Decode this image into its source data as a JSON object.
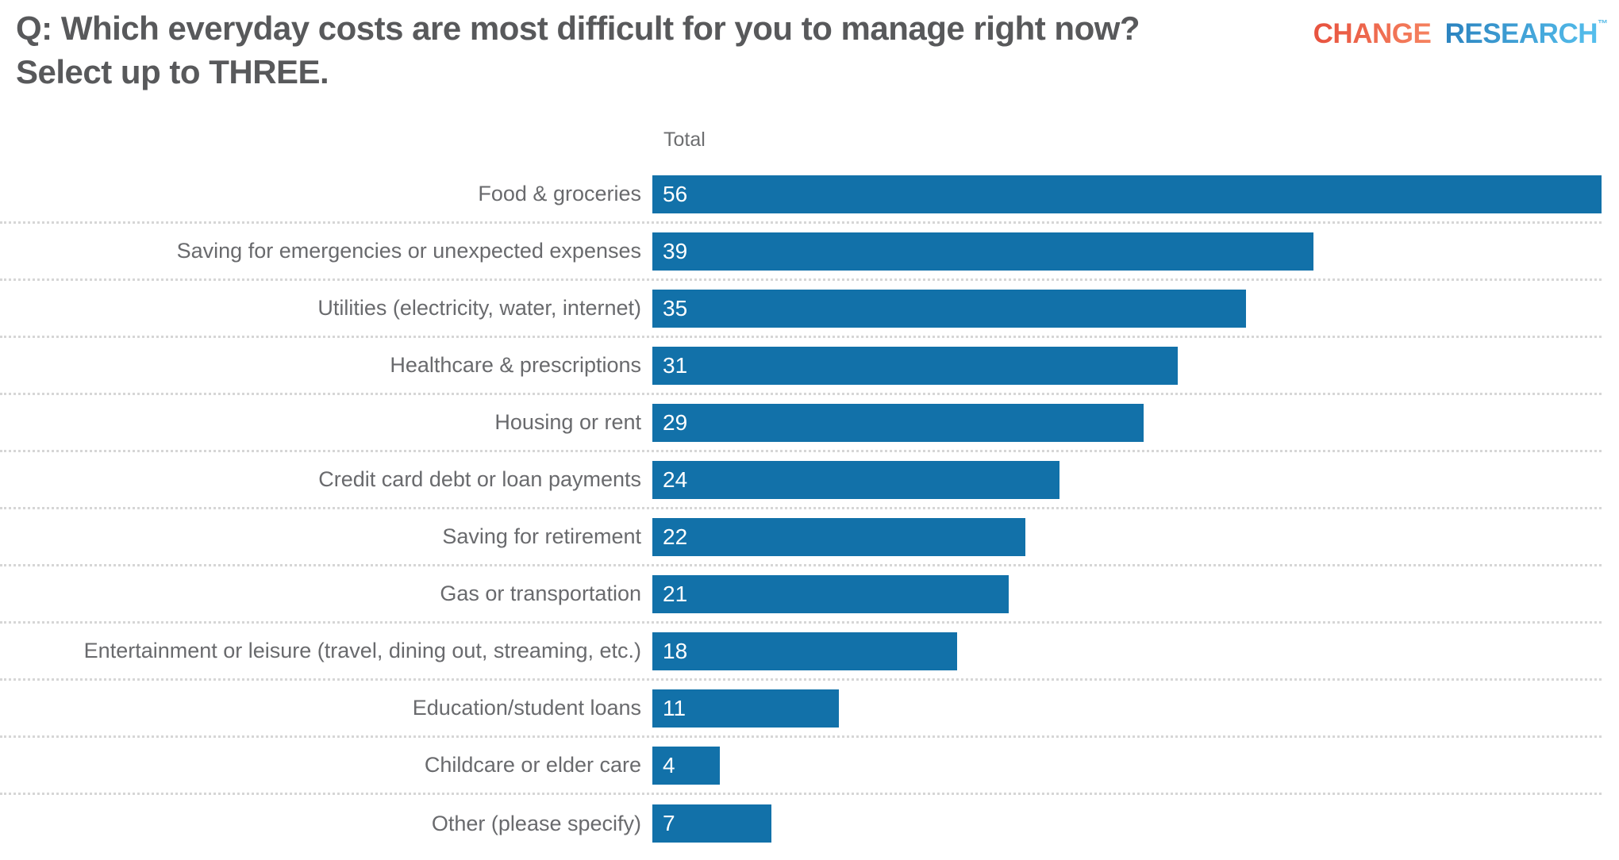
{
  "title": {
    "lines": [
      "Q: Which everyday costs are most difficult for you to manage right now?",
      "Select up to THREE."
    ],
    "full_text": "Q: Which everyday costs are most difficult for you to manage right now? Select up to THREE.",
    "color": "#58595B"
  },
  "logo": {
    "word1": "CHANGE",
    "word2": "RESEARCH",
    "tm": "™",
    "word1_color": "#EF5E48",
    "word2_color": "#3FA5DA"
  },
  "chart": {
    "column_header": "Total",
    "max_value": 56,
    "bar_color": "#1271A9",
    "value_text_color": "#FFFFFF",
    "label_color": "#696A6D",
    "separator_color": "#D6D6D6",
    "rows": [
      {
        "label": "Food & groceries",
        "value": 56
      },
      {
        "label": "Saving for emergencies or unexpected expenses",
        "value": 39
      },
      {
        "label": "Utilities (electricity, water, internet)",
        "value": 35
      },
      {
        "label": "Healthcare & prescriptions",
        "value": 31
      },
      {
        "label": "Housing or rent",
        "value": 29
      },
      {
        "label": "Credit card debt or loan payments",
        "value": 24
      },
      {
        "label": "Saving for retirement",
        "value": 22
      },
      {
        "label": "Gas or transportation",
        "value": 21
      },
      {
        "label": "Entertainment or leisure (travel, dining out, streaming, etc.)",
        "value": 18
      },
      {
        "label": "Education/student loans",
        "value": 11
      },
      {
        "label": "Childcare or elder care",
        "value": 4
      },
      {
        "label": "Other (please specify)",
        "value": 7
      }
    ]
  },
  "chart_data": {
    "type": "bar",
    "orientation": "horizontal",
    "title": "Q: Which everyday costs are most difficult for you to manage right now? Select up to THREE.",
    "series_label": "Total",
    "categories": [
      "Food & groceries",
      "Saving for emergencies or unexpected expenses",
      "Utilities (electricity, water, internet)",
      "Healthcare & prescriptions",
      "Housing or rent",
      "Credit card debt or loan payments",
      "Saving for retirement",
      "Gas or transportation",
      "Entertainment or leisure (travel, dining out, streaming, etc.)",
      "Education/student loans",
      "Childcare or elder care",
      "Other (please specify)"
    ],
    "values": [
      56,
      39,
      35,
      31,
      29,
      24,
      22,
      21,
      18,
      11,
      4,
      7
    ],
    "xlabel": "",
    "ylabel": "",
    "xlim": [
      0,
      56
    ],
    "grid": false,
    "legend_position": "none",
    "value_labels": "inside-bar-start",
    "bar_color": "#1271A9"
  }
}
